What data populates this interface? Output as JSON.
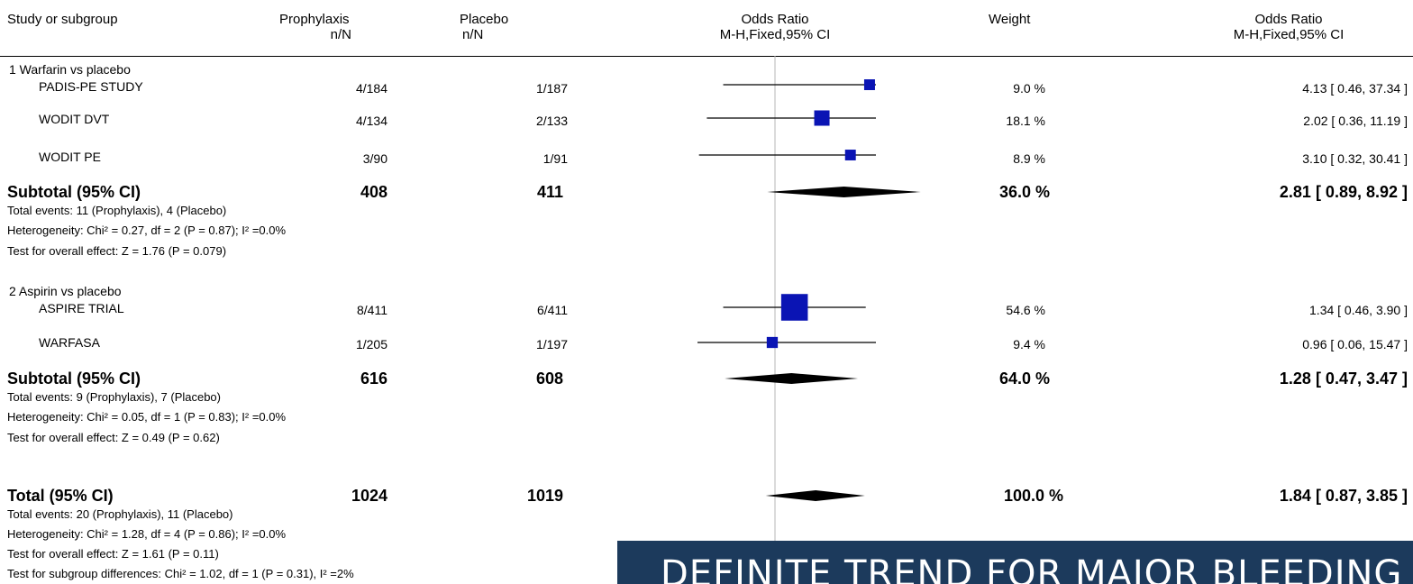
{
  "header": {
    "study_col": "Study or subgroup",
    "proph_col": "Prophylaxis",
    "proph_sub": "n/N",
    "placebo_col": "Placebo",
    "placebo_sub": "n/N",
    "or_col": "Odds Ratio",
    "or_sub": "M-H,Fixed,95% CI",
    "weight_col": "Weight",
    "or2_col": "Odds Ratio",
    "or2_sub": "M-H,Fixed,95% CI"
  },
  "colors": {
    "square": "#0a14b4",
    "diamond": "#000000",
    "banner": "#1c3a5c"
  },
  "chart_data": {
    "type": "forest",
    "measure": "Odds Ratio (M-H, Fixed, 95% CI)",
    "log_scale": true,
    "null_value": 1,
    "subgroups": [
      {
        "label": "1 Warfarin vs placebo",
        "studies": [
          {
            "name": "PADIS-PE STUDY",
            "prophylaxis": "4/184",
            "placebo": "1/187",
            "weight": "9.0 %",
            "ci_text": "4.13 [ 0.46, 37.34 ]",
            "or": 4.13,
            "lo": 0.46,
            "hi": 37.34,
            "w": 9.0
          },
          {
            "name": "WODIT DVT",
            "prophylaxis": "4/134",
            "placebo": "2/133",
            "weight": "18.1 %",
            "ci_text": "2.02 [ 0.36, 11.19 ]",
            "or": 2.02,
            "lo": 0.36,
            "hi": 11.19,
            "w": 18.1
          },
          {
            "name": "WODIT PE",
            "prophylaxis": "3/90",
            "placebo": "1/91",
            "weight": "8.9 %",
            "ci_text": "3.10 [ 0.32, 30.41 ]",
            "or": 3.1,
            "lo": 0.32,
            "hi": 30.41,
            "w": 8.9
          }
        ],
        "subtotal": {
          "label": "Subtotal (95% CI)",
          "prophylaxis": "408",
          "placebo": "411",
          "weight": "36.0 %",
          "ci_text": "2.81 [ 0.89, 8.92 ]",
          "or": 2.81,
          "lo": 0.89,
          "hi": 8.92,
          "events": "Total events: 11 (Prophylaxis), 4 (Placebo)",
          "heterogeneity": "Heterogeneity: Chi² = 0.27, df = 2 (P = 0.87); I² =0.0%",
          "overall": "Test for overall effect: Z = 1.76 (P = 0.079)"
        }
      },
      {
        "label": "2 Aspirin vs placebo",
        "studies": [
          {
            "name": "ASPIRE TRIAL",
            "prophylaxis": "8/411",
            "placebo": "6/411",
            "weight": "54.6 %",
            "ci_text": "1.34 [ 0.46, 3.90 ]",
            "or": 1.34,
            "lo": 0.46,
            "hi": 3.9,
            "w": 54.6
          },
          {
            "name": "WARFASA",
            "prophylaxis": "1/205",
            "placebo": "1/197",
            "weight": "9.4 %",
            "ci_text": "0.96 [ 0.06, 15.47 ]",
            "or": 0.96,
            "lo": 0.06,
            "hi": 15.47,
            "w": 9.4
          }
        ],
        "subtotal": {
          "label": "Subtotal (95% CI)",
          "prophylaxis": "616",
          "placebo": "608",
          "weight": "64.0 %",
          "ci_text": "1.28 [ 0.47, 3.47 ]",
          "or": 1.28,
          "lo": 0.47,
          "hi": 3.47,
          "events": "Total events: 9 (Prophylaxis), 7 (Placebo)",
          "heterogeneity": "Heterogeneity: Chi² = 0.05, df = 1 (P = 0.83); I² =0.0%",
          "overall": "Test for overall effect: Z = 0.49 (P = 0.62)"
        }
      }
    ],
    "total": {
      "label": "Total (95% CI)",
      "prophylaxis": "1024",
      "placebo": "1019",
      "weight": "100.0 %",
      "ci_text": "1.84 [ 0.87, 3.85 ]",
      "or": 1.84,
      "lo": 0.87,
      "hi": 3.85,
      "events": "Total events: 20 (Prophylaxis), 11 (Placebo)",
      "heterogeneity": "Heterogeneity: Chi² = 1.28, df = 4 (P = 0.86); I² =0.0%",
      "overall": "Test for overall effect: Z = 1.61 (P = 0.11)",
      "subgroup_diff": "Test for subgroup differences: Chi² = 1.02, df = 1 (P = 0.31), I² =2%"
    }
  },
  "banner": {
    "text": "DEFINITE TREND FOR MAJOR BLEEDING"
  }
}
